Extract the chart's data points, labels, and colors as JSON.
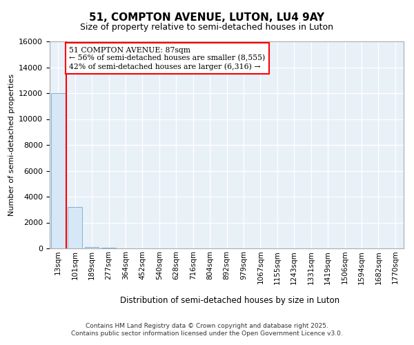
{
  "title": "51, COMPTON AVENUE, LUTON, LU4 9AY",
  "subtitle": "Size of property relative to semi-detached houses in Luton",
  "xlabel": "Distribution of semi-detached houses by size in Luton",
  "ylabel": "Number of semi-detached properties",
  "annotation_line1": "51 COMPTON AVENUE: 87sqm",
  "annotation_line2": "← 56% of semi-detached houses are smaller (8,555)",
  "annotation_line3": "42% of semi-detached houses are larger (6,316) →",
  "footer_line1": "Contains HM Land Registry data © Crown copyright and database right 2025.",
  "footer_line2": "Contains public sector information licensed under the Open Government Licence v3.0.",
  "bar_color": "#d6e8f7",
  "bar_edge_color": "#7ab3d8",
  "vline_color": "red",
  "annotation_box_edge_color": "red",
  "annotation_box_face_color": "white",
  "categories": [
    "13sqm",
    "101sqm",
    "189sqm",
    "277sqm",
    "364sqm",
    "452sqm",
    "540sqm",
    "628sqm",
    "716sqm",
    "804sqm",
    "892sqm",
    "979sqm",
    "1067sqm",
    "1155sqm",
    "1243sqm",
    "1331sqm",
    "1419sqm",
    "1506sqm",
    "1594sqm",
    "1682sqm",
    "1770sqm"
  ],
  "values": [
    12000,
    3200,
    130,
    30,
    5,
    2,
    1,
    1,
    0,
    0,
    0,
    0,
    0,
    0,
    0,
    0,
    0,
    0,
    0,
    0,
    0
  ],
  "ylim": [
    0,
    16000
  ],
  "yticks": [
    0,
    2000,
    4000,
    6000,
    8000,
    10000,
    12000,
    14000,
    16000
  ],
  "vline_x": 0.5,
  "bg_color": "#e8f0f8"
}
